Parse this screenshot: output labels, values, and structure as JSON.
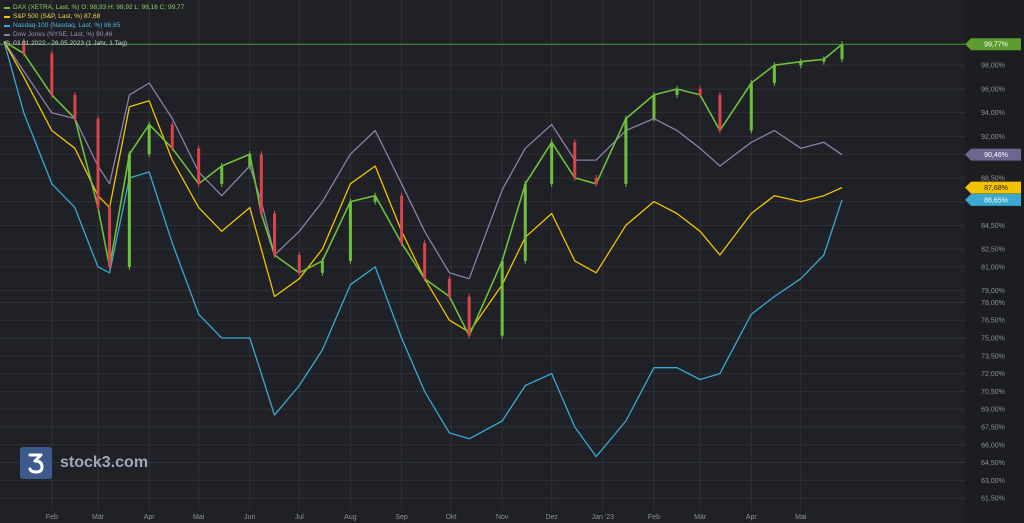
{
  "legend": {
    "dax": "DAX (XETRA, Last, %)  O: 98,93  H: 99,92  L: 98,16  C: 99,77",
    "sp500": "S&P 500 (S&P, Last, %)  87,68",
    "nasdaq": "Nasdaq-100 (Nasdaq, Last, %)  86,65",
    "dow": "Dow Jones (NYSE, Last, %)  90,46",
    "period": "03.01.2022 - 26.05.2023  (1 Jahr, 1 Tag)"
  },
  "logo_text": "stock3.com",
  "colors": {
    "background": "#1f2126",
    "grid": "#2e3137",
    "dax_up": "#6fbf3c",
    "dax_down": "#d9434a",
    "sp500": "#f2c200",
    "nasdaq": "#3aa8cf",
    "dow": "#8a7fa8",
    "ref_line": "#4c9a3a"
  },
  "chart_data": {
    "type": "line",
    "title": "",
    "xlabel": "",
    "ylabel": "",
    "x_tick_labels": [
      "Feb",
      "Mär",
      "Apr",
      "Mai",
      "Jun",
      "Jul",
      "Aug",
      "Sep",
      "Okt",
      "Nov",
      "Dez",
      "Jan '23",
      "Feb",
      "Mär",
      "Apr",
      "Mai"
    ],
    "y_tick_labels": [
      "98,00%",
      "96,00%",
      "94,00%",
      "92,00%",
      "90,50%",
      "88,50%",
      "86,50%",
      "84,50%",
      "82,50%",
      "81,00%",
      "79,00%",
      "78,00%",
      "76,50%",
      "75,00%",
      "73,50%",
      "72,00%",
      "70,50%",
      "69,00%",
      "67,50%",
      "66,00%",
      "64,50%",
      "63,00%",
      "61,50%"
    ],
    "y_tick_values": [
      98.0,
      96.0,
      94.0,
      92.0,
      90.5,
      88.5,
      86.5,
      84.5,
      82.5,
      81.0,
      79.0,
      78.0,
      76.5,
      75.0,
      73.5,
      72.0,
      70.5,
      69.0,
      67.5,
      66.0,
      64.5,
      63.0,
      61.5
    ],
    "x_range": [
      "03.01.2022",
      "26.05.2023"
    ],
    "reference_line": 99.77,
    "grid": true,
    "legend_position": "top-left",
    "x": [
      "03.01.2022",
      "15.01.2022",
      "01.02.2022",
      "15.02.2022",
      "01.03.2022",
      "08.03.2022",
      "20.03.2022",
      "01.04.2022",
      "15.04.2022",
      "01.05.2022",
      "15.05.2022",
      "01.06.2022",
      "08.06.2022",
      "16.06.2022",
      "01.07.2022",
      "15.07.2022",
      "01.08.2022",
      "16.08.2022",
      "01.09.2022",
      "15.09.2022",
      "30.09.2022",
      "12.10.2022",
      "01.11.2022",
      "15.11.2022",
      "01.12.2022",
      "15.12.2022",
      "28.12.2022",
      "15.01.2023",
      "01.02.2023",
      "15.02.2023",
      "01.03.2023",
      "13.03.2023",
      "01.04.2023",
      "15.04.2023",
      "01.05.2023",
      "15.05.2023",
      "26.05.2023"
    ],
    "series": [
      {
        "name": "DAX",
        "values": [
          100.0,
          99.0,
          95.5,
          93.5,
          86.0,
          81.0,
          90.5,
          93.0,
          91.0,
          88.0,
          89.5,
          90.5,
          85.5,
          82.0,
          80.5,
          81.5,
          86.5,
          87.0,
          83.0,
          80.0,
          78.5,
          75.2,
          81.5,
          88.0,
          91.5,
          88.5,
          88.0,
          93.5,
          95.5,
          96.0,
          95.5,
          92.5,
          96.5,
          98.0,
          98.3,
          98.5,
          99.77
        ]
      },
      {
        "name": "S&P 500",
        "values": [
          100.0,
          97.0,
          92.5,
          91.0,
          87.0,
          86.0,
          94.5,
          95.0,
          90.0,
          86.0,
          84.0,
          86.0,
          82.5,
          78.5,
          80.0,
          82.5,
          88.0,
          89.5,
          84.0,
          80.0,
          76.5,
          75.5,
          79.5,
          83.5,
          85.5,
          81.5,
          80.5,
          84.5,
          86.5,
          85.5,
          84.0,
          82.0,
          85.5,
          87.0,
          86.5,
          87.0,
          87.68
        ]
      },
      {
        "name": "Nasdaq-100",
        "values": [
          100.0,
          94.0,
          88.0,
          86.0,
          81.0,
          80.5,
          88.5,
          89.0,
          83.0,
          77.0,
          75.0,
          75.0,
          72.0,
          68.5,
          71.0,
          74.0,
          79.5,
          81.0,
          75.0,
          70.5,
          67.0,
          66.5,
          68.0,
          71.0,
          72.0,
          67.5,
          65.0,
          68.0,
          72.5,
          72.5,
          71.5,
          72.0,
          77.0,
          78.5,
          80.0,
          82.0,
          86.65
        ]
      },
      {
        "name": "Dow Jones",
        "values": [
          100.0,
          97.5,
          94.0,
          93.5,
          89.5,
          88.0,
          95.5,
          96.5,
          93.5,
          89.0,
          87.0,
          89.5,
          86.5,
          82.0,
          84.0,
          86.5,
          90.5,
          92.5,
          88.0,
          84.0,
          80.5,
          80.0,
          87.5,
          91.0,
          93.0,
          90.0,
          90.0,
          92.5,
          93.5,
          92.5,
          91.0,
          89.5,
          91.5,
          92.5,
          91.0,
          91.5,
          90.46
        ]
      }
    ],
    "last_value_labels": [
      "99,77%",
      "90,46%",
      "87,68%",
      "86,65%"
    ]
  }
}
